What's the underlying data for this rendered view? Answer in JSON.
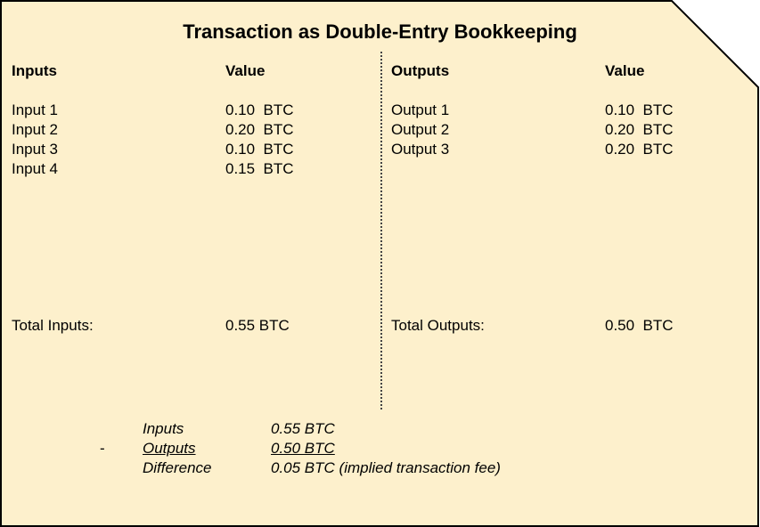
{
  "title": "Transaction as Double-Entry Bookkeeping",
  "inputs": {
    "header": "Inputs",
    "value_header": "Value",
    "rows": [
      {
        "label": "Input 1",
        "value": "0.10  BTC"
      },
      {
        "label": "Input 2",
        "value": "0.20  BTC"
      },
      {
        "label": "Input 3",
        "value": "0.10  BTC"
      },
      {
        "label": "Input 4",
        "value": "0.15  BTC"
      }
    ],
    "total_label": "Total Inputs:",
    "total_value": "0.55 BTC"
  },
  "outputs": {
    "header": "Outputs",
    "value_header": "Value",
    "rows": [
      {
        "label": "Output 1",
        "value": "0.10  BTC"
      },
      {
        "label": "Output 2",
        "value": "0.20  BTC"
      },
      {
        "label": "Output 3",
        "value": "0.20  BTC"
      }
    ],
    "total_label": "Total Outputs:",
    "total_value": "0.50  BTC"
  },
  "summary": {
    "minus_sign": "-",
    "inputs_label": "Inputs",
    "inputs_value": "0.55 BTC",
    "outputs_label": "Outputs",
    "outputs_value": "0.50 BTC",
    "difference_label": "Difference",
    "difference_value": "0.05 BTC (implied transaction fee)"
  },
  "colors": {
    "card_fill": "#fdf0cc",
    "card_stroke": "#000000"
  }
}
